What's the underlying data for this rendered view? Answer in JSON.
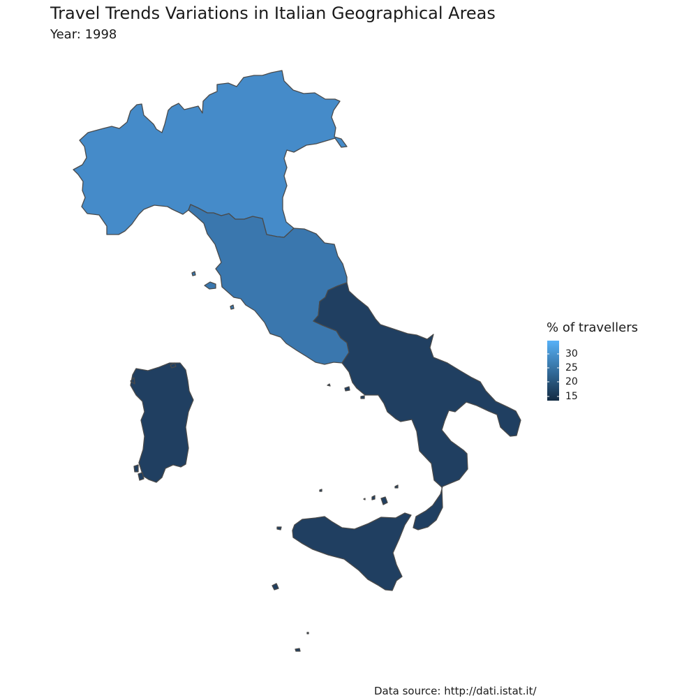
{
  "title": "Travel Trends Variations in Italian Geographical Areas",
  "subtitle": "Year: 1998",
  "caption": "Data source: http://dati.istat.it/",
  "legend": {
    "title": "% of travellers",
    "ticks": [
      "30",
      "25",
      "20",
      "15"
    ],
    "color_low": "#132B43",
    "color_high": "#56B1F7"
  },
  "regions": [
    {
      "name": "North",
      "color": "#458BC9"
    },
    {
      "name": "Centre",
      "color": "#3A77AE"
    },
    {
      "name": "South",
      "color": "#203F61"
    },
    {
      "name": "Islands",
      "color": "#203F61"
    }
  ]
}
